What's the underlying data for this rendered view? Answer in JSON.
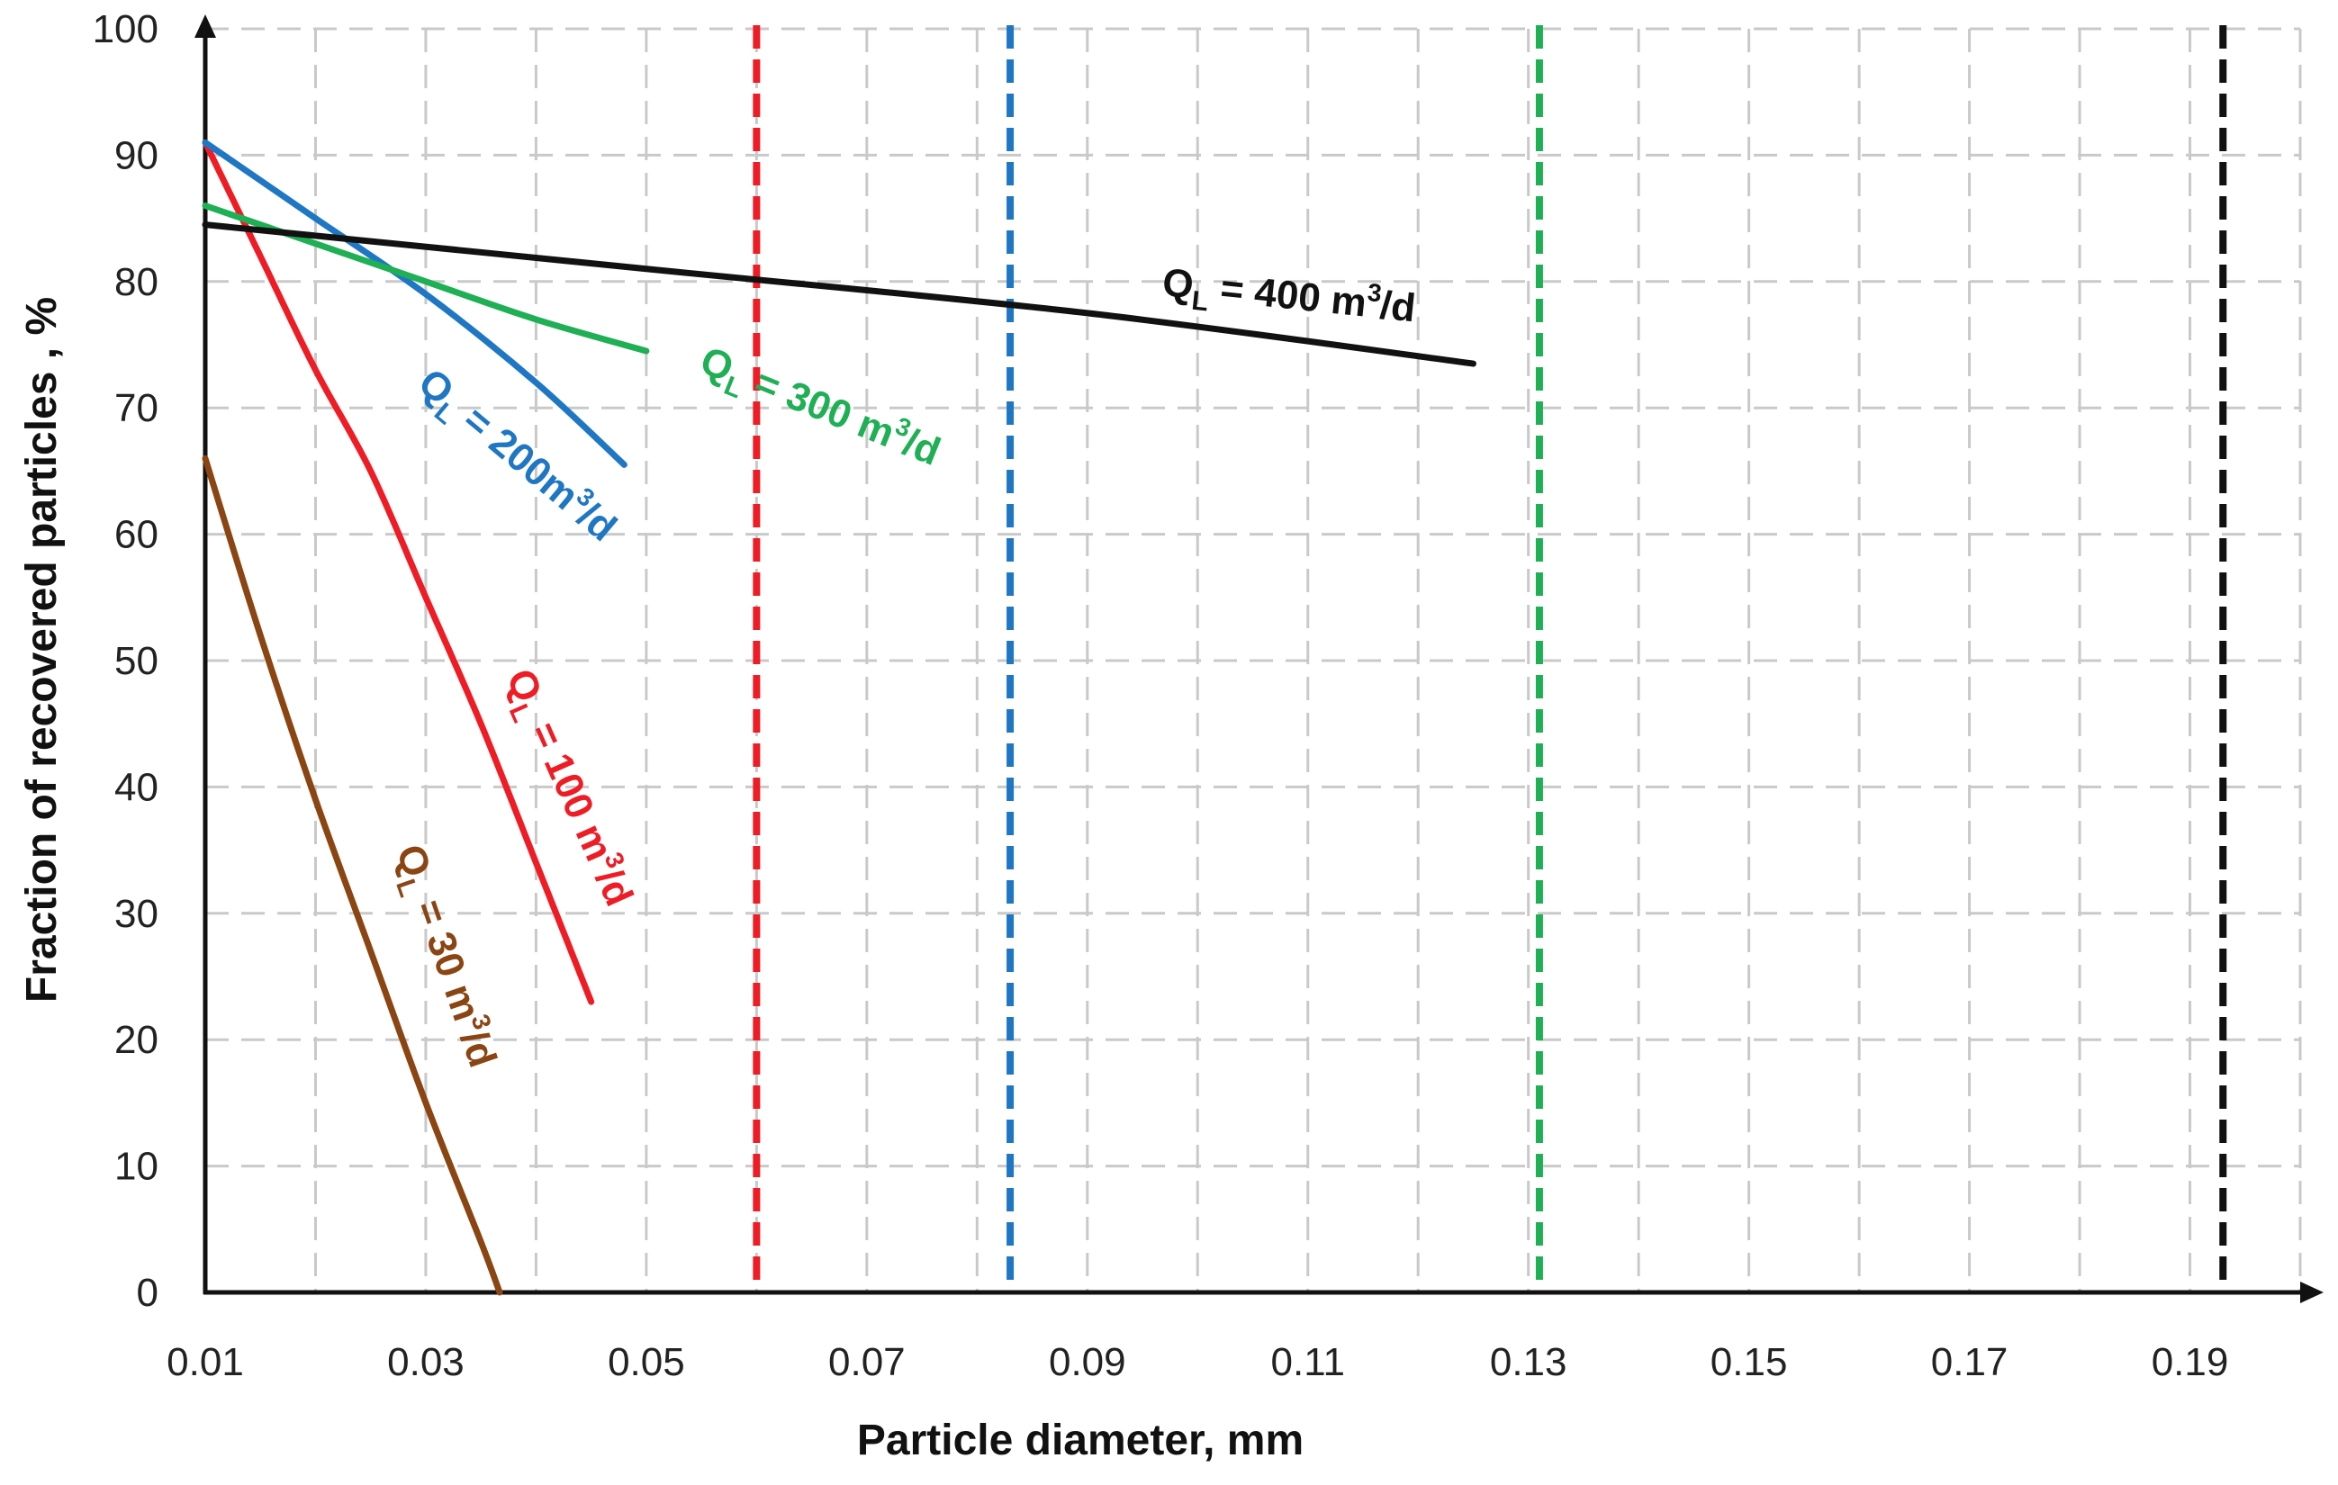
{
  "chart_data": {
    "type": "line",
    "title": "",
    "xlabel": "Particle diameter, mm",
    "ylabel": "Fraction of recovered particles , %",
    "xlim": [
      0.01,
      0.2
    ],
    "ylim": [
      0,
      100
    ],
    "x_ticks": [
      0.01,
      0.03,
      0.05,
      0.07,
      0.09,
      0.11,
      0.13,
      0.15,
      0.17,
      0.19
    ],
    "x_tick_labels": [
      "0.01",
      "0.03",
      "0.05",
      "0.07",
      "0.09",
      "0.11",
      "0.13",
      "0.15",
      "0.17",
      "0.19"
    ],
    "y_ticks": [
      0,
      10,
      20,
      30,
      40,
      50,
      60,
      70,
      80,
      90,
      100
    ],
    "y_tick_labels": [
      "0",
      "10",
      "20",
      "30",
      "40",
      "50",
      "60",
      "70",
      "80",
      "90",
      "100"
    ],
    "grid": true,
    "legend": "none (curves labeled inline)",
    "series": [
      {
        "name": "QL = 30 m3/d",
        "label_main": "Q",
        "label_sub": "L",
        "label_rest": " = 30 m",
        "label_sup": "3",
        "label_end": "/d",
        "color": "#8B4513",
        "x": [
          0.01,
          0.015,
          0.02,
          0.025,
          0.03,
          0.035,
          0.0367
        ],
        "y": [
          66,
          52,
          39,
          27,
          15,
          4,
          0
        ]
      },
      {
        "name": "QL = 100 m3/d",
        "label_main": "Q",
        "label_sub": "L",
        "label_rest": " = 100 m",
        "label_sup": "3",
        "label_end": "/d",
        "color": "#EE1C25",
        "x": [
          0.01,
          0.015,
          0.02,
          0.025,
          0.03,
          0.035,
          0.04,
          0.045
        ],
        "y": [
          91,
          82,
          73,
          65,
          55,
          45,
          34,
          23
        ]
      },
      {
        "name": "QL = 200m3/d",
        "label_main": "Q",
        "label_sub": "L",
        "label_rest": " = 200m",
        "label_sup": "3",
        "label_end": "/d",
        "color": "#1F77C4",
        "x": [
          0.01,
          0.02,
          0.03,
          0.04,
          0.048
        ],
        "y": [
          91,
          85,
          79,
          72,
          65.5
        ]
      },
      {
        "name": "QL = 300 m3/d",
        "label_main": "Q",
        "label_sub": "L",
        "label_rest": " = 300 m",
        "label_sup": "3",
        "label_end": "/d",
        "color": "#1FAF55",
        "x": [
          0.01,
          0.02,
          0.03,
          0.04,
          0.05
        ],
        "y": [
          86,
          83,
          80,
          77,
          74.5
        ]
      },
      {
        "name": "QL = 400 m3/d",
        "label_main": "Q",
        "label_sub": "L",
        "label_rest": " = 400 m",
        "label_sup": "3",
        "label_end": "/d",
        "color": "#111111",
        "x": [
          0.01,
          0.05,
          0.09,
          0.125
        ],
        "y": [
          84.5,
          81,
          77.5,
          73.5
        ]
      }
    ],
    "vertical_dashed_lines": [
      {
        "x": 0.06,
        "color": "#EE1C25"
      },
      {
        "x": 0.083,
        "color": "#1F77C4"
      },
      {
        "x": 0.131,
        "color": "#1FAF55"
      },
      {
        "x": 0.193,
        "color": "#111111"
      }
    ]
  }
}
